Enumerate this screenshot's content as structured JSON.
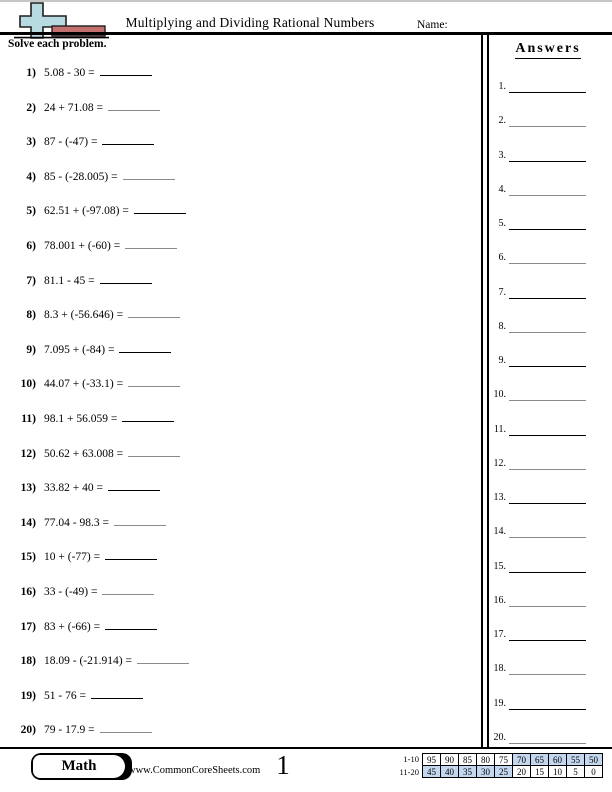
{
  "header": {
    "icon": "plus-minus-icon",
    "title": "Multiplying and Dividing Rational Numbers",
    "name_label": "Name:"
  },
  "instructions": {
    "text": "Solve each problem."
  },
  "answers": {
    "title": "Answers",
    "labels": [
      "1.",
      "2.",
      "3.",
      "4.",
      "5.",
      "6.",
      "7.",
      "8.",
      "9.",
      "10.",
      "11.",
      "12.",
      "13.",
      "14.",
      "15.",
      "16.",
      "17.",
      "18.",
      "19.",
      "20."
    ]
  },
  "problems": [
    {
      "num": "1)",
      "expr": "5.08 - 30 ="
    },
    {
      "num": "2)",
      "expr": "24 + 71.08 ="
    },
    {
      "num": "3)",
      "expr": "87 - (-47) ="
    },
    {
      "num": "4)",
      "expr": "85 - (-28.005) ="
    },
    {
      "num": "5)",
      "expr": "62.51 + (-97.08) ="
    },
    {
      "num": "6)",
      "expr": "78.001 + (-60) ="
    },
    {
      "num": "7)",
      "expr": "81.1 - 45 ="
    },
    {
      "num": "8)",
      "expr": "8.3 + (-56.646) ="
    },
    {
      "num": "9)",
      "expr": "7.095 + (-84) ="
    },
    {
      "num": "10)",
      "expr": "44.07 + (-33.1) ="
    },
    {
      "num": "11)",
      "expr": "98.1 + 56.059 ="
    },
    {
      "num": "12)",
      "expr": "50.62 + 63.008 ="
    },
    {
      "num": "13)",
      "expr": "33.82 + 40 ="
    },
    {
      "num": "14)",
      "expr": "77.04 - 98.3 ="
    },
    {
      "num": "15)",
      "expr": "10 + (-77) ="
    },
    {
      "num": "16)",
      "expr": "33 - (-49) ="
    },
    {
      "num": "17)",
      "expr": "83 + (-66) ="
    },
    {
      "num": "18)",
      "expr": "18.09 - (-21.914) ="
    },
    {
      "num": "19)",
      "expr": "51 - 76 ="
    },
    {
      "num": "20)",
      "expr": "79 - 17.9 ="
    }
  ],
  "footer": {
    "subject": "Math",
    "website": "www.CommonCoreSheets.com",
    "page_number": "1",
    "score_table": {
      "rows": [
        {
          "label": "1-10",
          "cells": [
            {
              "value": "95",
              "highlighted": false
            },
            {
              "value": "90",
              "highlighted": false
            },
            {
              "value": "85",
              "highlighted": false
            },
            {
              "value": "80",
              "highlighted": false
            },
            {
              "value": "75",
              "highlighted": false
            },
            {
              "value": "70",
              "highlighted": true
            },
            {
              "value": "65",
              "highlighted": true
            },
            {
              "value": "60",
              "highlighted": true
            },
            {
              "value": "55",
              "highlighted": true
            },
            {
              "value": "50",
              "highlighted": true
            }
          ]
        },
        {
          "label": "11-20",
          "cells": [
            {
              "value": "45",
              "highlighted": true
            },
            {
              "value": "40",
              "highlighted": true
            },
            {
              "value": "35",
              "highlighted": true
            },
            {
              "value": "30",
              "highlighted": true
            },
            {
              "value": "25",
              "highlighted": true
            },
            {
              "value": "20",
              "highlighted": false
            },
            {
              "value": "15",
              "highlighted": false
            },
            {
              "value": "10",
              "highlighted": false
            },
            {
              "value": "5",
              "highlighted": false
            },
            {
              "value": "0",
              "highlighted": false
            }
          ]
        }
      ]
    }
  },
  "colors": {
    "highlight_blue": "#c3d7ee",
    "icon_blue": "#b7dbe1",
    "icon_red": "#c4706f"
  }
}
